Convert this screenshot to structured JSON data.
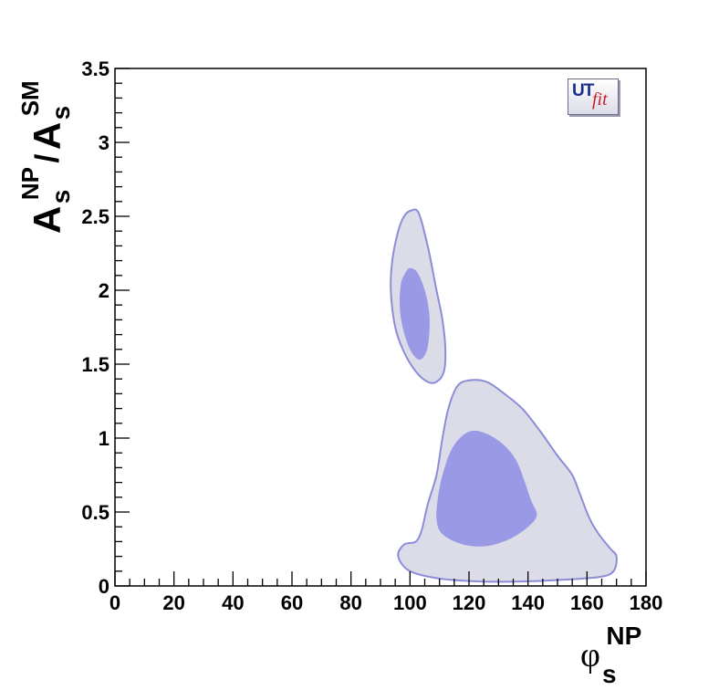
{
  "chart_data": {
    "type": "contour",
    "xlabel": {
      "base": "φ",
      "sub": "s",
      "sup": "NP"
    },
    "ylabel": {
      "num_base": "A",
      "num_sub": "s",
      "num_sup": "NP",
      "sep": "/",
      "den_base": "A",
      "den_sub": "s",
      "den_sup": "SM"
    },
    "xlim": [
      0,
      180
    ],
    "ylim": [
      0,
      3.5
    ],
    "x_ticks": [
      0,
      20,
      40,
      60,
      80,
      100,
      120,
      140,
      160,
      180
    ],
    "x_tick_labels": [
      "0",
      "20",
      "40",
      "60",
      "80",
      "100",
      "120",
      "140",
      "160",
      "180"
    ],
    "y_ticks": [
      0,
      0.5,
      1,
      1.5,
      2,
      2.5,
      3,
      3.5
    ],
    "y_tick_labels": [
      "0",
      "0.5",
      "1",
      "1.5",
      "2",
      "2.5",
      "3",
      "3.5"
    ],
    "grid": false,
    "colors": {
      "outer_fill": "#dcdce8",
      "outer_stroke": "#8c8cd8",
      "inner_fill": "#9999e6"
    },
    "regions": [
      {
        "level": "95%",
        "points": [
          [
            100.5,
            2.54
          ],
          [
            103,
            2.52
          ],
          [
            106,
            2.3
          ],
          [
            109,
            2.0
          ],
          [
            111,
            1.8
          ],
          [
            112,
            1.6
          ],
          [
            111.5,
            1.45
          ],
          [
            109,
            1.38
          ],
          [
            106,
            1.38
          ],
          [
            102,
            1.45
          ],
          [
            98,
            1.58
          ],
          [
            95,
            1.75
          ],
          [
            93.5,
            2.0
          ],
          [
            94,
            2.2
          ],
          [
            96,
            2.4
          ],
          [
            98,
            2.5
          ]
        ]
      },
      {
        "level": "68%",
        "points": [
          [
            100,
            2.15
          ],
          [
            102.5,
            2.12
          ],
          [
            105,
            2.0
          ],
          [
            106.5,
            1.85
          ],
          [
            106.5,
            1.7
          ],
          [
            105.5,
            1.58
          ],
          [
            103,
            1.53
          ],
          [
            100,
            1.6
          ],
          [
            97.5,
            1.75
          ],
          [
            96.5,
            1.9
          ],
          [
            97,
            2.05
          ],
          [
            98.5,
            2.12
          ]
        ]
      },
      {
        "level": "95%",
        "points": [
          [
            116,
            1.35
          ],
          [
            120,
            1.39
          ],
          [
            126,
            1.38
          ],
          [
            132,
            1.3
          ],
          [
            138,
            1.2
          ],
          [
            144,
            1.05
          ],
          [
            150,
            0.88
          ],
          [
            155,
            0.75
          ],
          [
            158,
            0.6
          ],
          [
            161,
            0.45
          ],
          [
            164,
            0.35
          ],
          [
            168,
            0.25
          ],
          [
            170,
            0.2
          ],
          [
            169,
            0.1
          ],
          [
            164,
            0.06
          ],
          [
            150,
            0.04
          ],
          [
            138,
            0.03
          ],
          [
            124,
            0.03
          ],
          [
            110,
            0.05
          ],
          [
            100,
            0.1
          ],
          [
            96,
            0.2
          ],
          [
            98,
            0.28
          ],
          [
            102,
            0.3
          ],
          [
            104,
            0.38
          ],
          [
            106,
            0.55
          ],
          [
            109,
            0.75
          ],
          [
            111,
            1.0
          ],
          [
            113,
            1.2
          ]
        ]
      },
      {
        "level": "68%",
        "points": [
          [
            122,
            1.05
          ],
          [
            127,
            1.02
          ],
          [
            132,
            0.95
          ],
          [
            136,
            0.85
          ],
          [
            139,
            0.7
          ],
          [
            141,
            0.58
          ],
          [
            143,
            0.48
          ],
          [
            140,
            0.4
          ],
          [
            134,
            0.32
          ],
          [
            126,
            0.27
          ],
          [
            118,
            0.28
          ],
          [
            111,
            0.35
          ],
          [
            109,
            0.45
          ],
          [
            109.5,
            0.6
          ],
          [
            111,
            0.75
          ],
          [
            114,
            0.92
          ],
          [
            118,
            1.02
          ]
        ]
      }
    ]
  },
  "logo": {
    "part1": "UT",
    "part2": "fit"
  }
}
